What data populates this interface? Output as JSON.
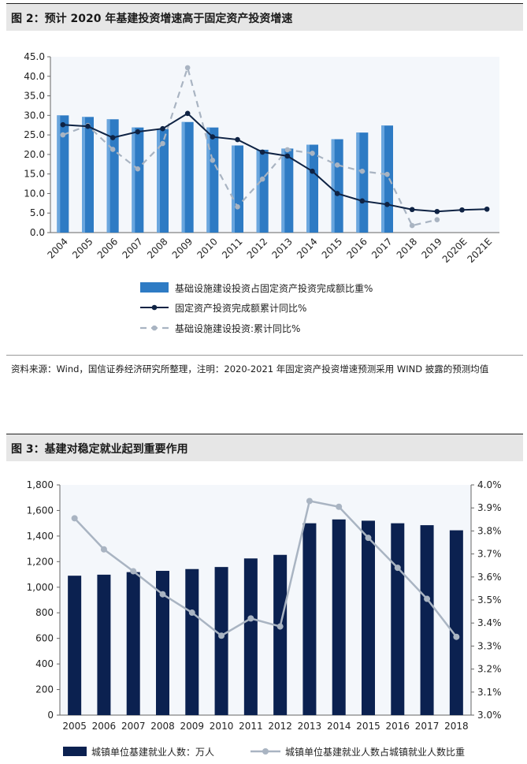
{
  "figure1": {
    "header": "图 2：预计 2020 年基建投资增速高于固定资产投资增速",
    "note": "资料来源：Wind，国信证券经济研究所整理，注明：2020-2021 年固定资产投资增速预测采用 WIND 披露的预测均值"
  },
  "figure2": {
    "header": "图 3：基建对稳定就业起到重要作用"
  },
  "chart_data": [
    {
      "type": "bar+line",
      "title": "预计 2020 年基建投资增速高于固定资产投资增速",
      "categories": [
        "2004",
        "2005",
        "2006",
        "2007",
        "2008",
        "2009",
        "2010",
        "2011",
        "2012",
        "2013",
        "2014",
        "2015",
        "2016",
        "2017",
        "2018",
        "2019",
        "2020E",
        "2021E"
      ],
      "y_ticks": [
        "0.0",
        "5.0",
        "10.0",
        "15.0",
        "20.0",
        "25.0",
        "30.0",
        "35.0",
        "40.0",
        "45.0"
      ],
      "ylim": [
        0,
        45
      ],
      "series": [
        {
          "name": "基础设施建设投资占固定资产投资完成额比重%",
          "kind": "bar",
          "color": "#2e7bc4",
          "values": [
            30.0,
            29.6,
            29.0,
            26.9,
            26.5,
            28.3,
            26.9,
            22.3,
            21.2,
            21.5,
            22.5,
            23.9,
            25.6,
            27.4,
            null,
            null,
            null,
            null
          ]
        },
        {
          "name": "固定资产投资完成额累计同比%",
          "kind": "line",
          "color": "#0f2344",
          "values": [
            27.6,
            27.2,
            24.3,
            25.8,
            26.6,
            30.5,
            24.5,
            23.8,
            20.6,
            19.6,
            15.7,
            10.0,
            8.1,
            7.2,
            5.9,
            5.4,
            5.8,
            6.0
          ]
        },
        {
          "name": "基础设施建设投资:累计同比%",
          "kind": "line-dashed",
          "color": "#a9b4c2",
          "values": [
            25.0,
            27.4,
            21.3,
            16.3,
            22.8,
            42.2,
            18.5,
            6.6,
            13.7,
            21.2,
            20.3,
            17.3,
            15.7,
            14.9,
            1.8,
            3.3,
            null,
            null
          ]
        }
      ]
    },
    {
      "type": "bar+line",
      "title": "基建对稳定就业起到重要作用",
      "categories": [
        "2005",
        "2006",
        "2007",
        "2008",
        "2009",
        "2010",
        "2011",
        "2012",
        "2013",
        "2014",
        "2015",
        "2016",
        "2017",
        "2018"
      ],
      "y_ticks": [
        "0",
        "200",
        "400",
        "600",
        "800",
        "1,000",
        "1,200",
        "1,400",
        "1,600",
        "1,800"
      ],
      "ylim": [
        0,
        1800
      ],
      "y2_ticks": [
        "3.0%",
        "3.1%",
        "3.2%",
        "3.3%",
        "3.4%",
        "3.5%",
        "3.6%",
        "3.7%",
        "3.8%",
        "3.9%",
        "4.0%"
      ],
      "y2lim": [
        3.0,
        4.0
      ],
      "series": [
        {
          "name": "城镇单位基建就业人数：万人",
          "kind": "bar",
          "color": "#0b2150",
          "values": [
            1090,
            1098,
            1118,
            1128,
            1142,
            1158,
            1225,
            1253,
            1500,
            1530,
            1520,
            1500,
            1485,
            1445
          ]
        },
        {
          "name": "城镇单位基建就业人数占城镇就业人数比重",
          "kind": "line",
          "axis": "right",
          "color": "#a9b4c2",
          "values": [
            3.855,
            3.72,
            3.625,
            3.525,
            3.445,
            3.345,
            3.42,
            3.385,
            3.93,
            3.905,
            3.77,
            3.64,
            3.505,
            3.34
          ]
        }
      ]
    }
  ]
}
